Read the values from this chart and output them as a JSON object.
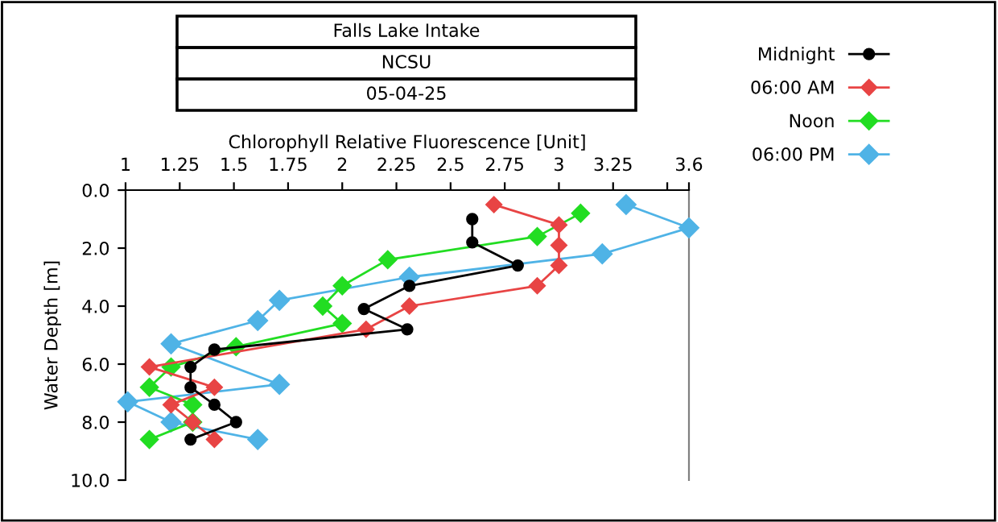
{
  "chart_data": {
    "type": "line",
    "title": "Falls Lake Intake",
    "subtitle": "NCSU",
    "annotations": [
      "05-04-25"
    ],
    "xlabel": "Chlorophyll Relative Fluorescence [Unit]",
    "ylabel": "Water Depth [m]",
    "xlim": [
      1,
      3.6
    ],
    "xticks": [
      1,
      1.25,
      1.5,
      1.75,
      2,
      2.25,
      2.5,
      2.75,
      3,
      3.25,
      {
        "value": 3.5,
        "label": null
      },
      3.6
    ],
    "ylim": [
      10,
      0
    ],
    "yticks": [
      {
        "value": 0,
        "label": "0.0"
      },
      {
        "value": 2,
        "label": "2.0"
      },
      {
        "value": 4,
        "label": "4.0"
      },
      {
        "value": 6,
        "label": "6.0"
      },
      {
        "value": 8,
        "label": "8.0"
      },
      {
        "value": 10,
        "label": "10.0"
      }
    ],
    "grid": false,
    "legend": "right",
    "line_style": "solid",
    "series": [
      {
        "name": "Midnight",
        "color": "#000000",
        "marker": "circle",
        "x": [
          2.6,
          2.6,
          2.81,
          2.31,
          2.1,
          2.3,
          1.41,
          1.3,
          1.3,
          1.41,
          1.51,
          1.3
        ],
        "values": [
          1.0,
          1.8,
          2.6,
          3.3,
          4.1,
          4.8,
          5.5,
          6.1,
          6.8,
          7.4,
          8.0,
          8.6
        ]
      },
      {
        "name": "06:00 AM",
        "color": "#e84444",
        "marker": "diamond",
        "x": [
          2.7,
          3.0,
          3.0,
          3.0,
          2.9,
          2.31,
          2.11,
          1.11,
          1.41,
          1.21,
          1.31,
          1.41
        ],
        "values": [
          0.5,
          1.2,
          1.9,
          2.6,
          3.3,
          4.0,
          4.8,
          6.1,
          6.8,
          7.4,
          8.0,
          8.6
        ]
      },
      {
        "name": "Noon",
        "color": "#22dd22",
        "marker": "diamond",
        "x": [
          3.1,
          2.9,
          2.21,
          2.0,
          1.91,
          2.0,
          1.51,
          1.21,
          1.11,
          1.31,
          1.31,
          1.11
        ],
        "values": [
          0.8,
          1.6,
          2.4,
          3.3,
          4.0,
          4.6,
          5.4,
          6.1,
          6.8,
          7.4,
          8.0,
          8.6
        ]
      },
      {
        "name": "06:00 PM",
        "color": "#4fb3e6",
        "marker": "diamond",
        "x": [
          3.31,
          3.6,
          3.2,
          2.31,
          1.71,
          1.61,
          1.21,
          1.71,
          1.01,
          1.21,
          1.61
        ],
        "values": [
          0.5,
          1.3,
          2.2,
          3.0,
          3.8,
          4.5,
          5.3,
          6.7,
          7.3,
          8.0,
          8.6
        ]
      }
    ]
  }
}
